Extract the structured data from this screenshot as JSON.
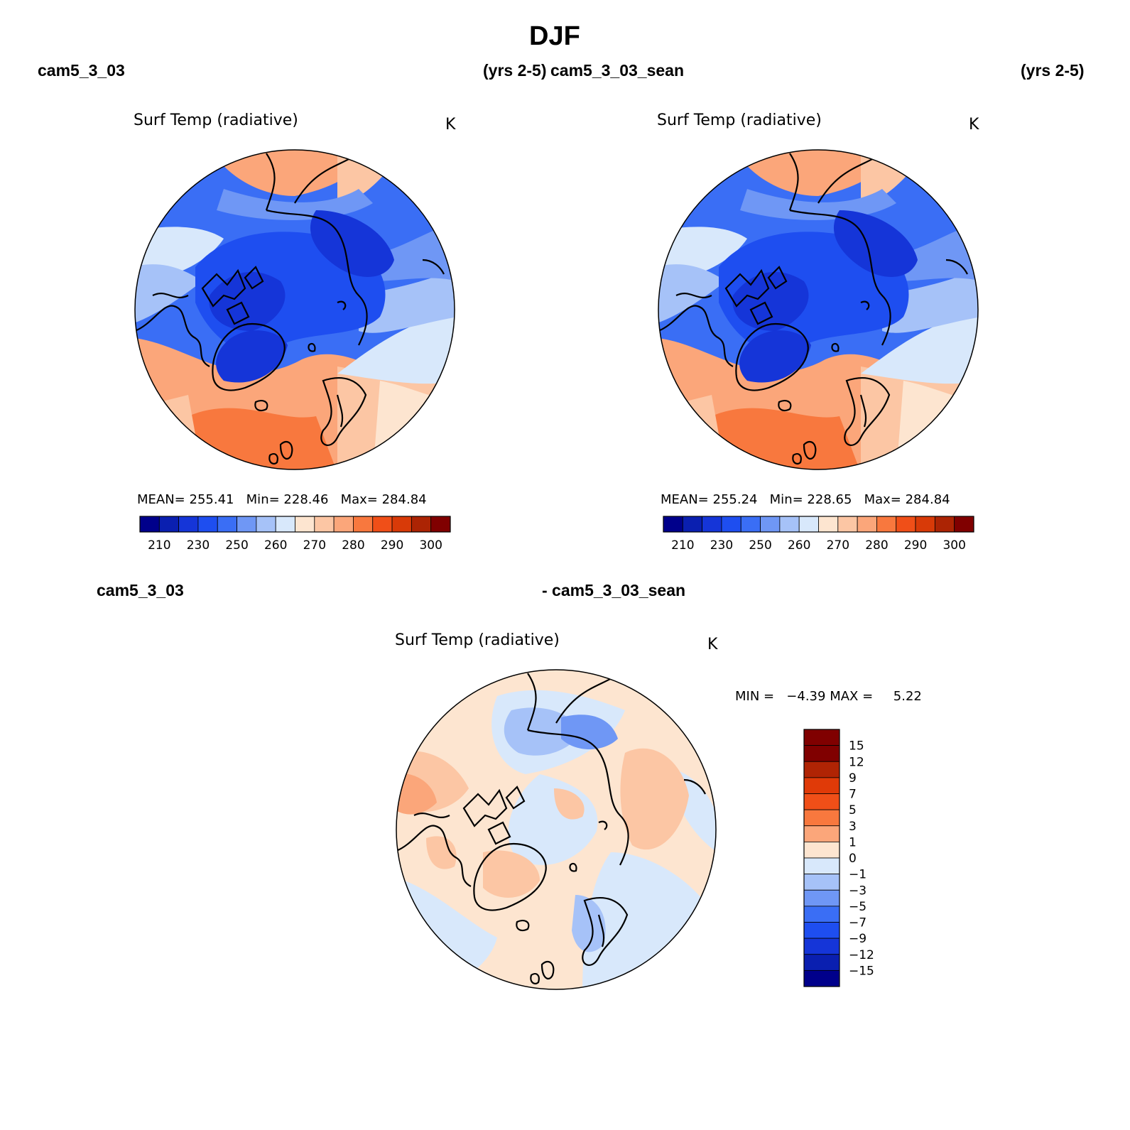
{
  "title": "DJF",
  "top_left": {
    "case": "cam5_3_03",
    "years": "(yrs 2-5)"
  },
  "top_right": {
    "case": "cam5_3_03_sean",
    "years": "(yrs 2-5)"
  },
  "diff_header": {
    "left": "cam5_3_03",
    "right": "- cam5_3_03_sean"
  },
  "panels": [
    {
      "id": "case1",
      "variable": "Surf Temp (radiative)",
      "units": "K",
      "stats": {
        "mean_label": "MEAN=",
        "mean": "255.41",
        "min_label": "Min=",
        "min": "228.46",
        "max_label": "Max=",
        "max": "284.84"
      }
    },
    {
      "id": "case2",
      "variable": "Surf Temp (radiative)",
      "units": "K",
      "stats": {
        "mean_label": "MEAN=",
        "mean": "255.24",
        "min_label": "Min=",
        "min": "228.65",
        "max_label": "Max=",
        "max": "284.84"
      }
    },
    {
      "id": "difference",
      "variable": "Surf Temp (radiative)",
      "units": "K",
      "stats": {
        "min_label": "MIN =",
        "min": "−4.39",
        "max_label": "MAX =",
        "max": "5.22"
      }
    }
  ],
  "colorbar_abs": {
    "tick_labels": [
      "210",
      "230",
      "250",
      "260",
      "270",
      "280",
      "290",
      "300"
    ],
    "colors": [
      "#00008b",
      "#0a1fb0",
      "#1535d8",
      "#1e4ef0",
      "#3a6ef5",
      "#6f97f5",
      "#a6c2f8",
      "#d8e8fb",
      "#fde5d0",
      "#fcc6a4",
      "#fba67a",
      "#f8783e",
      "#f04f18",
      "#d83a08",
      "#ac2404",
      "#800000"
    ]
  },
  "colorbar_diff": {
    "tick_labels": [
      "15",
      "12",
      "9",
      "7",
      "5",
      "3",
      "1",
      "0",
      "−1",
      "−3",
      "−5",
      "−7",
      "−9",
      "−12",
      "−15"
    ],
    "colors": [
      "#800000",
      "#b02404",
      "#e03a08",
      "#f04f18",
      "#f8783e",
      "#fba67a",
      "#fde5d0",
      "#d8e8fb",
      "#a6c2f8",
      "#6f97f5",
      "#3a6ef5",
      "#1e4ef0",
      "#1535d8",
      "#0a1fb0",
      "#00008b"
    ]
  }
}
